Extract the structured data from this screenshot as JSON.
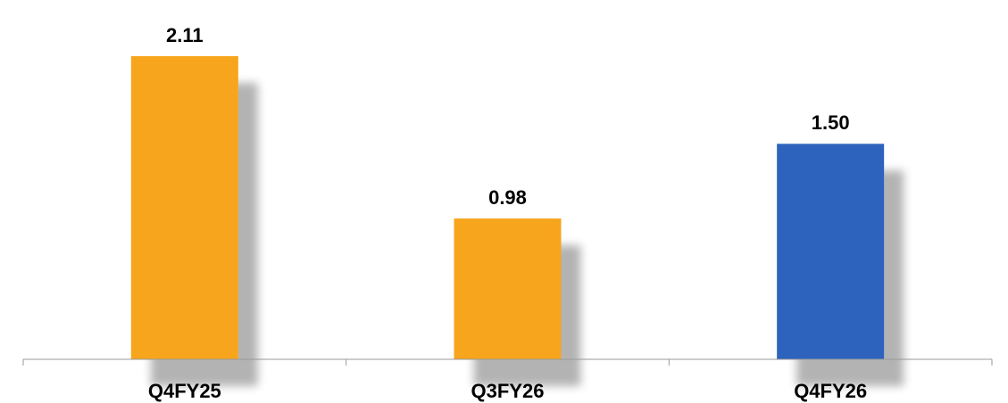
{
  "chart_data": {
    "type": "bar",
    "categories": [
      "Q4FY25",
      "Q3FY26",
      "Q4FY26"
    ],
    "values": [
      2.11,
      0.98,
      1.5
    ],
    "value_labels": [
      "2.11",
      "0.98",
      "1.50"
    ],
    "colors": [
      "#f7a51c",
      "#f7a51c",
      "#2e64bd"
    ]
  }
}
